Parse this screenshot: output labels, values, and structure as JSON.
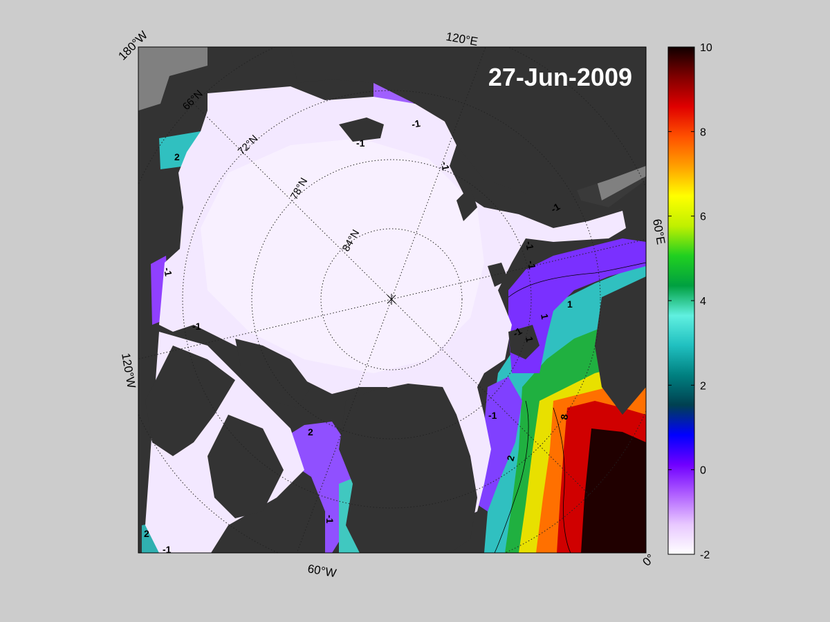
{
  "date_label": "27-Jun-2009",
  "longitude_labels": {
    "lon_180w": "180°W",
    "lon_120e": "120°E",
    "lon_60e": "60°E",
    "lon_0": "0°",
    "lon_60w": "60°W",
    "lon_120w": "120°W"
  },
  "latitude_labels": {
    "lat_66": "66°N",
    "lat_72": "72°N",
    "lat_78": "78°N",
    "lat_84": "84°N"
  },
  "contour_labels": [
    "-1",
    "-1",
    "-1",
    "-1",
    "-1",
    "-1",
    "-1",
    "-1",
    "-1",
    "-1",
    "-1",
    "-1",
    "1",
    "1",
    "1",
    "2",
    "2",
    "2",
    "2",
    "8"
  ],
  "colorbar": {
    "min": -2,
    "max": 10,
    "ticks": [
      "10",
      "8",
      "6",
      "4",
      "2",
      "0",
      "-2"
    ],
    "colors": [
      "#ffffff",
      "#e8c8ff",
      "#b060ff",
      "#7000ff",
      "#0000ff",
      "#004050",
      "#008080",
      "#20c0c0",
      "#60f0e0",
      "#00a040",
      "#20d020",
      "#c0f000",
      "#ffff00",
      "#ffa000",
      "#ff5000",
      "#e00000",
      "#800000",
      "#100000"
    ]
  },
  "colors": {
    "background": "#cccccc",
    "land": "#333333",
    "ice": "#f3e8ff",
    "map_frame": "#000000"
  }
}
